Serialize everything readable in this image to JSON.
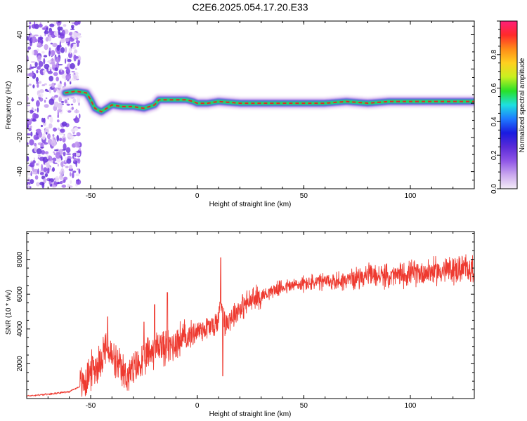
{
  "title": "C2E6.2025.054.17.20.E33",
  "colors": {
    "snr_line": "#ee3a30",
    "ridge_core": "#e02828",
    "colormap": [
      "#f4ecf8",
      "#caa8ee",
      "#8f55e6",
      "#5a2bd8",
      "#1a1ae0",
      "#1e7bff",
      "#1ee0e0",
      "#28e028",
      "#c8f020",
      "#ffd020",
      "#ff8c18",
      "#ff2a2a",
      "#ff1f7a"
    ]
  },
  "chart_data": [
    {
      "type": "heatmap",
      "xlabel": "Height of straight line (km)",
      "ylabel": "Frequency (Hz)",
      "xlim": [
        -80,
        130
      ],
      "ylim": [
        -50,
        48
      ],
      "x_ticks": [
        -50,
        0,
        50,
        100
      ],
      "y_ticks": [
        -40,
        -20,
        0,
        20,
        40
      ],
      "colorbar": {
        "label": "Normalized spectral amplitude",
        "range": [
          0,
          1
        ],
        "ticks": [
          0.0,
          0.2,
          0.4,
          0.6,
          0.8
        ]
      },
      "noise_region_x": [
        -80,
        -57
      ],
      "ridge": {
        "x": [
          -62,
          -57,
          -52,
          -50,
          -48,
          -45,
          -40,
          -35,
          -30,
          -25,
          -20,
          -18,
          -10,
          -5,
          -2,
          0,
          5,
          10,
          20,
          30,
          40,
          50,
          60,
          70,
          80,
          90,
          100,
          110,
          120,
          130
        ],
        "frequency": [
          6,
          7,
          6,
          2,
          -3,
          -5,
          -1,
          -2,
          -2,
          -3,
          -1,
          2,
          2,
          2,
          1,
          0,
          0,
          1,
          0,
          0,
          0,
          0,
          0,
          1,
          0,
          1,
          1,
          1,
          1,
          1
        ]
      }
    },
    {
      "type": "line",
      "xlabel": "Height of straight line (km)",
      "ylabel": "SNR (10 * v/v)",
      "xlim": [
        -80,
        130
      ],
      "ylim": [
        0,
        9600
      ],
      "x_ticks": [
        -50,
        0,
        50,
        100
      ],
      "y_ticks": [
        2000,
        4000,
        6000,
        8000
      ],
      "series": [
        {
          "x": [
            -80,
            -70,
            -60,
            -55,
            -52,
            -50,
            -47,
            -45,
            -43,
            -41,
            -40,
            -37,
            -35,
            -33,
            -30,
            -25,
            -22,
            -20,
            -17,
            -15,
            -13,
            -10,
            -5,
            0,
            5,
            8,
            10,
            11,
            13,
            15,
            20,
            25,
            30,
            35,
            40,
            50,
            60,
            70,
            80,
            90,
            100,
            110,
            120,
            130
          ],
          "y": [
            150,
            250,
            400,
            700,
            1100,
            1600,
            1900,
            2400,
            3000,
            2600,
            2300,
            1800,
            1500,
            1300,
            1600,
            2200,
            2700,
            2800,
            3100,
            2900,
            2900,
            3300,
            3500,
            3900,
            4100,
            4200,
            4500,
            5800,
            4300,
            4600,
            5200,
            5600,
            5900,
            6200,
            6400,
            6600,
            6700,
            6800,
            7100,
            7000,
            7200,
            7300,
            7400,
            7500
          ]
        }
      ],
      "spikes": [
        {
          "x": -42,
          "y": 4700
        },
        {
          "x": -25,
          "y": 4400
        },
        {
          "x": -20,
          "y": 5400
        },
        {
          "x": -14,
          "y": 6100
        },
        {
          "x": 11,
          "y": 8100
        },
        {
          "x": 12,
          "y": 1300
        }
      ]
    }
  ]
}
